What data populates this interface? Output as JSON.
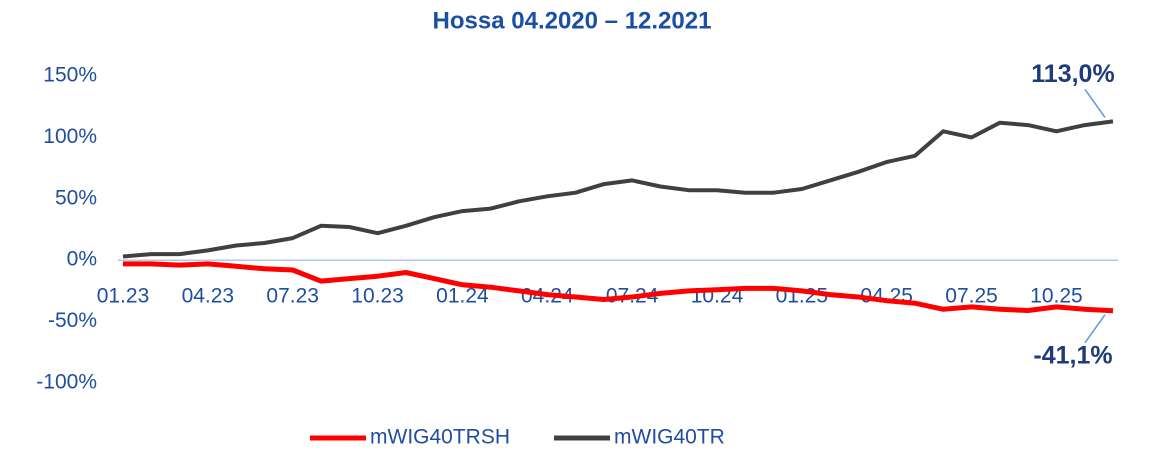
{
  "chart_data": {
    "type": "line",
    "title": "Hossa 04.2020 – 12.2021",
    "categories": [
      "01.23",
      null,
      null,
      "04.23",
      null,
      null,
      "07.23",
      null,
      null,
      "10.23",
      null,
      null,
      "01.24",
      null,
      null,
      "04.24",
      null,
      null,
      "07.24",
      null,
      null,
      "10.24",
      null,
      null,
      "01.25",
      null,
      null,
      "04.25",
      null,
      null,
      "07.25",
      null,
      null,
      "10.25",
      null,
      null
    ],
    "series": [
      {
        "name": "mWIG40TRSH",
        "color": "#ff0000",
        "values": [
          -3,
          -3,
          -4,
          -3,
          -5,
          -7,
          -8,
          -17,
          -15,
          -13,
          -10,
          -15,
          -20,
          -22,
          -25,
          -28,
          -30,
          -32,
          -30,
          -27,
          -25,
          -24,
          -23,
          -23,
          -25,
          -28,
          -30,
          -33,
          -35,
          -40,
          -38,
          -40,
          -41,
          -38,
          -40,
          -41.1
        ]
      },
      {
        "name": "mWIG40TR",
        "color": "#404040",
        "values": [
          3,
          5,
          5,
          8,
          12,
          14,
          18,
          28,
          27,
          22,
          28,
          35,
          40,
          42,
          48,
          52,
          55,
          62,
          65,
          60,
          57,
          57,
          55,
          55,
          58,
          65,
          72,
          80,
          85,
          105,
          100,
          112,
          110,
          105,
          110,
          113
        ]
      }
    ],
    "ylim": [
      -100,
      150
    ],
    "yticks": [
      {
        "value": -100,
        "label": "-100%"
      },
      {
        "value": -50,
        "label": "-50%"
      },
      {
        "value": 0,
        "label": "0%"
      },
      {
        "value": 50,
        "label": "50%"
      },
      {
        "value": 100,
        "label": "100%"
      },
      {
        "value": 150,
        "label": "150%"
      }
    ],
    "annotations": [
      {
        "text": "113,0%",
        "series": 1
      },
      {
        "text": "-41,1%",
        "series": 0
      }
    ],
    "legend": "bottom"
  }
}
